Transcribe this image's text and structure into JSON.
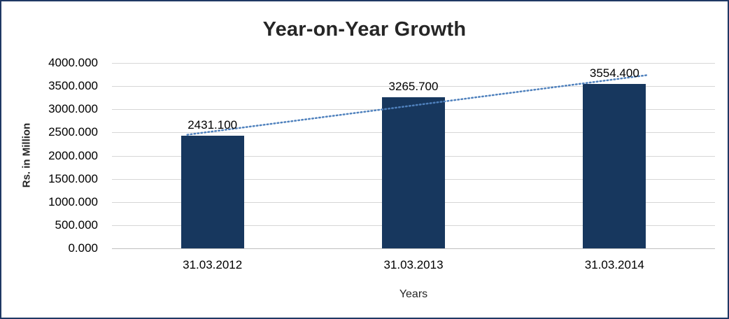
{
  "chart_data": {
    "type": "bar",
    "title": "Year-on-Year Growth",
    "xlabel": "Years",
    "ylabel": "Rs. in Million",
    "categories": [
      "31.03.2012",
      "31.03.2013",
      "31.03.2014"
    ],
    "values": [
      2431.1,
      3265.7,
      3554.4
    ],
    "value_labels": [
      "2431.100",
      "3265.700",
      "3554.400"
    ],
    "ylim": [
      0,
      4000
    ],
    "ytick_step": 500,
    "ytick_labels": [
      "0.000",
      "500.000",
      "1000.000",
      "1500.000",
      "2000.000",
      "2500.000",
      "3000.000",
      "3500.000",
      "4000.000"
    ],
    "grid": true,
    "legend": "none",
    "trendline": {
      "type": "linear",
      "style": "dotted",
      "start_value": 2522,
      "end_value": 3646
    },
    "colors": {
      "bar": "#17375E",
      "trendline": "#4F81BD",
      "frame_border": "#1F3864",
      "gridline": "#D6D6D6",
      "axis_line": "#BFBFBF",
      "text": "#262626"
    }
  }
}
